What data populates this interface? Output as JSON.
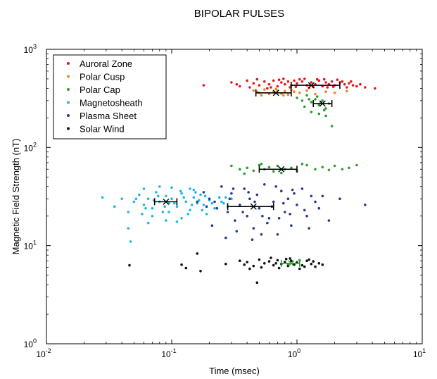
{
  "chart_data": {
    "type": "scatter",
    "title": "BIPOLAR PULSES",
    "xlabel": "Time (msec)",
    "ylabel": "Magnetic Field Strength (nT)",
    "x_scale": "log",
    "y_scale": "log",
    "xlim": [
      0.01,
      10
    ],
    "ylim": [
      1,
      1000
    ],
    "grid": false,
    "legend_position": "top-left",
    "x_ticks": [
      {
        "value": 0.01,
        "base": "10",
        "exp": "-2"
      },
      {
        "value": 0.1,
        "base": "10",
        "exp": "-1"
      },
      {
        "value": 1,
        "base": "10",
        "exp": "0"
      },
      {
        "value": 10,
        "base": "10",
        "exp": "1"
      }
    ],
    "y_ticks": [
      {
        "value": 1,
        "base": "10",
        "exp": "0"
      },
      {
        "value": 10,
        "base": "10",
        "exp": "1"
      },
      {
        "value": 100,
        "base": "10",
        "exp": "2"
      },
      {
        "value": 1000,
        "base": "10",
        "exp": "3"
      }
    ],
    "series": [
      {
        "name": "Auroral Zone",
        "color": "#e8161b",
        "points": [
          [
            0.18,
            430
          ],
          [
            0.3,
            460
          ],
          [
            0.35,
            420
          ],
          [
            0.4,
            480
          ],
          [
            0.45,
            450
          ],
          [
            0.5,
            430
          ],
          [
            0.55,
            470
          ],
          [
            0.6,
            440
          ],
          [
            0.65,
            480
          ],
          [
            0.7,
            420
          ],
          [
            0.75,
            460
          ],
          [
            0.8,
            440
          ],
          [
            0.85,
            470
          ],
          [
            0.9,
            430
          ],
          [
            0.95,
            480
          ],
          [
            1.0,
            450
          ],
          [
            1.1,
            470
          ],
          [
            1.2,
            430
          ],
          [
            1.3,
            460
          ],
          [
            1.4,
            440
          ],
          [
            1.5,
            480
          ],
          [
            1.6,
            420
          ],
          [
            1.7,
            460
          ],
          [
            1.8,
            440
          ],
          [
            1.9,
            470
          ],
          [
            2.0,
            430
          ],
          [
            2.2,
            460
          ],
          [
            2.4,
            440
          ],
          [
            2.6,
            450
          ],
          [
            2.8,
            430
          ],
          [
            3.0,
            420
          ],
          [
            3.5,
            410
          ],
          [
            4.2,
            400
          ],
          [
            0.42,
            410
          ],
          [
            0.58,
            400
          ],
          [
            0.72,
            490
          ],
          [
            0.88,
            410
          ],
          [
            1.05,
            495
          ],
          [
            1.25,
            405
          ],
          [
            1.45,
            495
          ],
          [
            1.75,
            410
          ],
          [
            2.1,
            490
          ],
          [
            2.5,
            410
          ],
          [
            0.33,
            440
          ],
          [
            0.48,
            495
          ],
          [
            0.62,
            410
          ],
          [
            0.78,
            500
          ],
          [
            0.98,
            415
          ],
          [
            1.15,
            500
          ],
          [
            1.35,
            415
          ],
          [
            1.65,
            495
          ],
          [
            1.95,
            415
          ],
          [
            2.3,
            470
          ],
          [
            2.7,
            470
          ],
          [
            3.2,
            440
          ]
        ],
        "mean": {
          "x": 1.3,
          "y": 430,
          "x_range": [
            0.9,
            2.2
          ]
        }
      },
      {
        "name": "Polar Cusp",
        "color": "#f58220",
        "points": [
          [
            0.45,
            380
          ],
          [
            0.5,
            360
          ],
          [
            0.55,
            390
          ],
          [
            0.6,
            350
          ],
          [
            0.65,
            370
          ],
          [
            0.7,
            380
          ],
          [
            0.75,
            355
          ],
          [
            0.8,
            375
          ],
          [
            0.85,
            345
          ],
          [
            0.9,
            385
          ],
          [
            0.52,
            340
          ],
          [
            0.68,
            395
          ],
          [
            0.78,
            340
          ],
          [
            0.95,
            370
          ],
          [
            1.05,
            360
          ],
          [
            1.2,
            380
          ],
          [
            1.4,
            350
          ],
          [
            1.7,
            370
          ],
          [
            2.0,
            360
          ],
          [
            2.5,
            375
          ],
          [
            0.48,
            370
          ]
        ],
        "mean": {
          "x": 0.68,
          "y": 360,
          "x_range": [
            0.47,
            0.9
          ]
        }
      },
      {
        "name": "Polar Cap",
        "color": "#2ca02c",
        "points": [
          [
            1.0,
            320
          ],
          [
            1.1,
            300
          ],
          [
            1.2,
            340
          ],
          [
            1.3,
            290
          ],
          [
            1.4,
            310
          ],
          [
            1.5,
            270
          ],
          [
            1.6,
            300
          ],
          [
            1.7,
            250
          ],
          [
            1.8,
            280
          ],
          [
            1.3,
            230
          ],
          [
            1.5,
            220
          ],
          [
            1.7,
            210
          ],
          [
            1.9,
            165
          ],
          [
            1.15,
            260
          ],
          [
            1.45,
            330
          ],
          [
            1.65,
            240
          ],
          [
            1.25,
            310
          ],
          [
            1.55,
            290
          ],
          [
            0.3,
            65
          ],
          [
            0.35,
            60
          ],
          [
            0.4,
            62
          ],
          [
            0.45,
            58
          ],
          [
            0.5,
            66
          ],
          [
            0.55,
            60
          ],
          [
            0.6,
            63
          ],
          [
            0.65,
            57
          ],
          [
            0.7,
            65
          ],
          [
            0.8,
            60
          ],
          [
            0.9,
            62
          ],
          [
            1.0,
            58
          ],
          [
            1.2,
            66
          ],
          [
            1.4,
            60
          ],
          [
            1.6,
            63
          ],
          [
            1.8,
            59
          ],
          [
            2.0,
            65
          ],
          [
            2.3,
            60
          ],
          [
            2.6,
            62
          ],
          [
            3.0,
            66
          ],
          [
            0.38,
            54
          ],
          [
            0.52,
            68
          ],
          [
            0.75,
            55
          ],
          [
            1.1,
            68
          ],
          [
            0.85,
            6.5
          ],
          [
            0.9,
            7.0
          ],
          [
            0.95,
            6.4
          ],
          [
            1.0,
            6.8
          ],
          [
            1.05,
            7.1
          ]
        ],
        "means": [
          {
            "x": 1.6,
            "y": 280,
            "x_range": [
              1.35,
              1.9
            ]
          },
          {
            "x": 0.75,
            "y": 60,
            "x_range": [
              0.5,
              1.0
            ]
          },
          {
            "x": 0.9,
            "y": 6.6,
            "x_range": [
              0.75,
              1.05
            ]
          }
        ]
      },
      {
        "name": "Magnetosheath",
        "color": "#1fb7ea",
        "points": [
          [
            0.028,
            31
          ],
          [
            0.035,
            25
          ],
          [
            0.04,
            30
          ],
          [
            0.045,
            22
          ],
          [
            0.045,
            15
          ],
          [
            0.047,
            11
          ],
          [
            0.05,
            28
          ],
          [
            0.055,
            33
          ],
          [
            0.06,
            26
          ],
          [
            0.065,
            30
          ],
          [
            0.07,
            24
          ],
          [
            0.075,
            35
          ],
          [
            0.08,
            28
          ],
          [
            0.085,
            22
          ],
          [
            0.09,
            32
          ],
          [
            0.095,
            27
          ],
          [
            0.1,
            30
          ],
          [
            0.11,
            25
          ],
          [
            0.12,
            34
          ],
          [
            0.13,
            28
          ],
          [
            0.14,
            23
          ],
          [
            0.15,
            31
          ],
          [
            0.16,
            27
          ],
          [
            0.17,
            33
          ],
          [
            0.18,
            26
          ],
          [
            0.2,
            29
          ],
          [
            0.22,
            24
          ],
          [
            0.24,
            31
          ],
          [
            0.26,
            27
          ],
          [
            0.28,
            25
          ],
          [
            0.3,
            30
          ],
          [
            0.06,
            38
          ],
          [
            0.07,
            20
          ],
          [
            0.09,
            18
          ],
          [
            0.1,
            39
          ],
          [
            0.12,
            19
          ],
          [
            0.15,
            37
          ],
          [
            0.19,
            21
          ],
          [
            0.065,
            17
          ],
          [
            0.08,
            40
          ],
          [
            0.11,
            17.5
          ],
          [
            0.14,
            38
          ],
          [
            0.058,
            21
          ],
          [
            0.072,
            29
          ],
          [
            0.088,
            25
          ],
          [
            0.105,
            27
          ],
          [
            0.125,
            31
          ],
          [
            0.145,
            26
          ],
          [
            0.165,
            29
          ],
          [
            0.185,
            32
          ],
          [
            0.21,
            27
          ],
          [
            0.052,
            30
          ],
          [
            0.062,
            24
          ],
          [
            0.078,
            32
          ],
          [
            0.095,
            22
          ],
          [
            0.118,
            36
          ],
          [
            0.135,
            21
          ],
          [
            0.155,
            35
          ],
          [
            0.175,
            23
          ],
          [
            0.25,
            28
          ],
          [
            0.27,
            31
          ]
        ],
        "mean": {
          "x": 0.09,
          "y": 28,
          "x_range": [
            0.073,
            0.11
          ]
        }
      },
      {
        "name": "Plasma Sheet",
        "color": "#2b3990",
        "points": [
          [
            0.18,
            35
          ],
          [
            0.2,
            30
          ],
          [
            0.22,
            28
          ],
          [
            0.25,
            40
          ],
          [
            0.28,
            22
          ],
          [
            0.3,
            34
          ],
          [
            0.32,
            18
          ],
          [
            0.35,
            26
          ],
          [
            0.38,
            38
          ],
          [
            0.4,
            20
          ],
          [
            0.42,
            30
          ],
          [
            0.45,
            15
          ],
          [
            0.48,
            33
          ],
          [
            0.5,
            24
          ],
          [
            0.55,
            42
          ],
          [
            0.6,
            19
          ],
          [
            0.65,
            28
          ],
          [
            0.7,
            13
          ],
          [
            0.75,
            36
          ],
          [
            0.8,
            22
          ],
          [
            0.85,
            30
          ],
          [
            0.9,
            16
          ],
          [
            1.0,
            26
          ],
          [
            1.1,
            38
          ],
          [
            1.2,
            20
          ],
          [
            1.3,
            32
          ],
          [
            1.5,
            24
          ],
          [
            1.8,
            18
          ],
          [
            2.2,
            30
          ],
          [
            3.5,
            26
          ],
          [
            0.27,
            12
          ],
          [
            0.33,
            14
          ],
          [
            0.44,
            11.5
          ],
          [
            0.58,
            17
          ],
          [
            0.68,
            40
          ],
          [
            0.95,
            34
          ],
          [
            1.4,
            28
          ],
          [
            0.23,
            24
          ],
          [
            0.29,
            30
          ],
          [
            0.37,
            22
          ],
          [
            0.46,
            28
          ],
          [
            0.53,
            20
          ],
          [
            0.63,
            25
          ],
          [
            0.78,
            27
          ],
          [
            0.88,
            21
          ],
          [
            1.15,
            23
          ],
          [
            1.6,
            32
          ],
          [
            0.21,
            16
          ],
          [
            0.31,
            38
          ],
          [
            0.41,
            35
          ],
          [
            0.52,
            13
          ],
          [
            0.72,
            19
          ],
          [
            0.92,
            37
          ],
          [
            1.25,
            15
          ],
          [
            0.16,
            28
          ],
          [
            0.19,
            25
          ]
        ],
        "mean": {
          "x": 0.45,
          "y": 25,
          "x_range": [
            0.28,
            0.65
          ]
        }
      },
      {
        "name": "Solar Wind",
        "color": "#111111",
        "points": [
          [
            0.046,
            6.3
          ],
          [
            0.12,
            6.4
          ],
          [
            0.16,
            8.3
          ],
          [
            0.17,
            5.5
          ],
          [
            0.13,
            5.9
          ],
          [
            0.27,
            6.5
          ],
          [
            0.35,
            7.0
          ],
          [
            0.4,
            6.8
          ],
          [
            0.45,
            6.2
          ],
          [
            0.5,
            7.2
          ],
          [
            0.55,
            6.6
          ],
          [
            0.6,
            6.9
          ],
          [
            0.65,
            6.3
          ],
          [
            0.7,
            7.1
          ],
          [
            0.75,
            6.5
          ],
          [
            0.8,
            6.8
          ],
          [
            0.85,
            6.2
          ],
          [
            0.9,
            7.0
          ],
          [
            0.95,
            6.4
          ],
          [
            1.0,
            6.7
          ],
          [
            1.1,
            6.3
          ],
          [
            1.2,
            7.0
          ],
          [
            1.3,
            6.5
          ],
          [
            1.4,
            6.1
          ],
          [
            1.5,
            6.6
          ],
          [
            1.6,
            6.4
          ],
          [
            0.48,
            4.2
          ],
          [
            0.42,
            5.8
          ],
          [
            0.62,
            7.5
          ],
          [
            0.72,
            5.9
          ],
          [
            0.88,
            7.4
          ],
          [
            1.05,
            5.8
          ],
          [
            1.25,
            7.2
          ],
          [
            0.38,
            6.4
          ],
          [
            0.52,
            6.0
          ],
          [
            0.68,
            6.6
          ],
          [
            0.82,
            7.3
          ],
          [
            1.15,
            6.1
          ],
          [
            1.35,
            6.9
          ]
        ]
      }
    ]
  }
}
